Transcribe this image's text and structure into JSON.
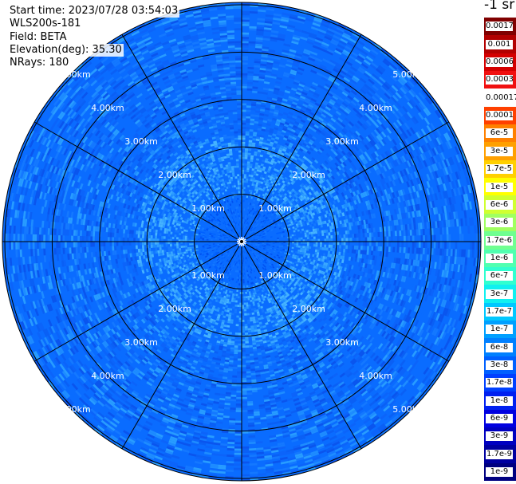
{
  "info": {
    "start_time": "Start time: 2023/07/28 03:54:03",
    "instrument": "WLS200s-181",
    "field": "Field: BETA",
    "elevation": "Elevation(deg): 35.30",
    "nrays": "NRays: 180"
  },
  "chart_data": {
    "type": "heatmap",
    "projection": "polar-ppi",
    "field": "BETA",
    "unit_label": "-1 sr",
    "nrays": 180,
    "elevation_deg": 35.3,
    "max_range_km": 5.0,
    "range_ring_labels": [
      "1.00km",
      "2.00km",
      "3.00km",
      "4.00km",
      "5.00km"
    ],
    "range_rings_km": [
      1,
      2,
      3,
      4,
      5
    ],
    "spoke_interval_deg": 30,
    "typical_values": {
      "inner_km_0_1": "1.7e-8",
      "middle_km_1_5": "1e-8 to 6e-8"
    },
    "colorbar": {
      "labels": [
        "0.0017",
        "0.001",
        "0.0006",
        "0.0003",
        "0.00017",
        "0.0001",
        "6e-5",
        "3e-5",
        "1.7e-5",
        "1e-5",
        "6e-6",
        "3e-6",
        "1.7e-6",
        "1e-6",
        "6e-7",
        "3e-7",
        "1.7e-7",
        "1e-7",
        "6e-8",
        "3e-8",
        "1.7e-8",
        "1e-8",
        "6e-9",
        "3e-9",
        "1.7e-9",
        "1e-9"
      ],
      "colors": [
        "#800000",
        "#b20000",
        "#d40000",
        "#f01010",
        "#ffffff",
        "#ff4000",
        "#ff8000",
        "#ffa000",
        "#ffd000",
        "#ffff00",
        "#d0ff30",
        "#a0ff60",
        "#70ff90",
        "#50ffb0",
        "#30ffd0",
        "#10f0f0",
        "#00c8ff",
        "#00a0ff",
        "#0080ff",
        "#0060ff",
        "#0040ff",
        "#0020f0",
        "#0000e0",
        "#0000c0",
        "#0000a0",
        "#000080"
      ]
    }
  }
}
